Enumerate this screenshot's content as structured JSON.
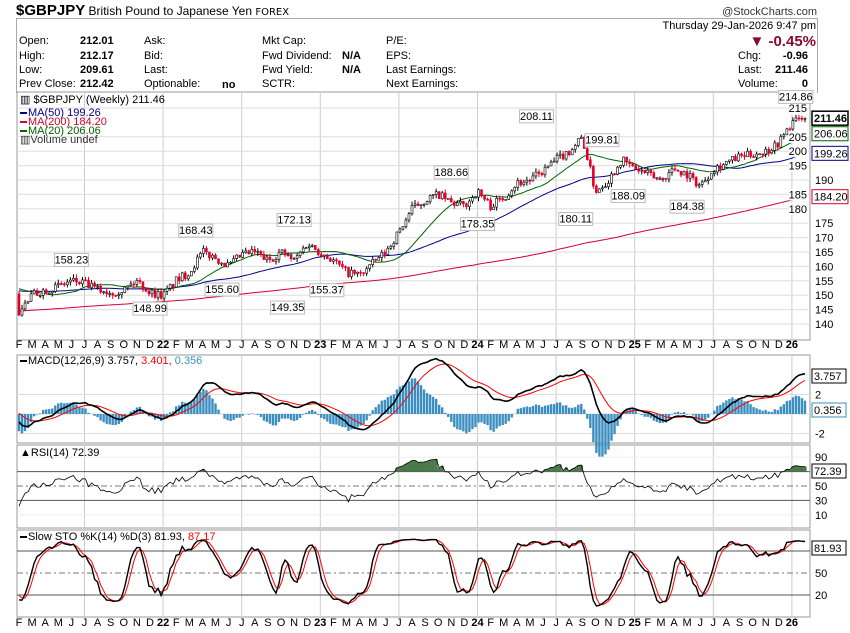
{
  "header": {
    "symbol": "$GBPJPY",
    "name": "British Pound to Japanese Yen",
    "exchange": "FOREX",
    "copyright": "@StockCharts.com",
    "datetime": "Thursday  29-Jan-2026  9:47 pm",
    "pct_change": "-0.45%",
    "down_arrow": "▼",
    "open_label": "Open:",
    "open": "212.01",
    "high_label": "High:",
    "high": "212.17",
    "low_label": "Low:",
    "low": "209.61",
    "prev_label": "Prev Close:",
    "prev": "212.42",
    "ask_label": "Ask:",
    "bid_label": "Bid:",
    "last_label": "Last:",
    "optionable_label": "Optionable:",
    "optionable": "no",
    "mktcap_label": "Mkt Cap:",
    "fwd_div_label": "Fwd Dividend:",
    "fwd_div": "N/A",
    "fwd_yield_label": "Fwd Yield:",
    "fwd_yield": "N/A",
    "sctr_label": "SCTR:",
    "pe_label": "P/E:",
    "eps_label": "EPS:",
    "last_earn_label": "Last Earnings:",
    "next_earn_label": "Next Earnings:",
    "chg_label": "Chg:",
    "chg": "-0.96",
    "last2_label": "Last:",
    "last": "211.46",
    "volume_label": "Volume:",
    "volume": "0"
  },
  "colors": {
    "up": "#000000",
    "down": "#e0002a",
    "ma50": "#00008b",
    "ma200": "#d40030",
    "ma20": "#006400",
    "macd": "#000000",
    "signal": "#ff0000",
    "hist": "#3b8fc0",
    "rsi_fill": "#4a7a4a"
  },
  "chart_data": {
    "type": "candlestick",
    "title": "$GBPJPY (Weekly) 211.46",
    "legend": {
      "ma50": "MA(50) 199.26",
      "ma200": "MA(200) 184.20",
      "ma20": "MA(20) 206.06",
      "volume": "Volume undef"
    },
    "ylim": [
      136,
      218
    ],
    "price_ticks": [
      140,
      145,
      150,
      155,
      160,
      165,
      170,
      175,
      180,
      185,
      190,
      195,
      200,
      205,
      215
    ],
    "last_labels": {
      "close": "211.46",
      "ma20": "206.06",
      "ma50": "199.26",
      "ma200": "184.20"
    },
    "last_values": {
      "close": 211.46,
      "ma20": 206.06,
      "ma50": 199.26,
      "ma200": 184.2
    },
    "start": "Feb 2021",
    "end": "Jan 2026",
    "close_anchors_by_month": [
      [
        0,
        144
      ],
      [
        1,
        150
      ],
      [
        2,
        152
      ],
      [
        3,
        153
      ],
      [
        4,
        155
      ],
      [
        5,
        154
      ],
      [
        6,
        152
      ],
      [
        7,
        151
      ],
      [
        8,
        152
      ],
      [
        9,
        155
      ],
      [
        10,
        151
      ],
      [
        11,
        150
      ],
      [
        12,
        155
      ],
      [
        13,
        158
      ],
      [
        14,
        165
      ],
      [
        15,
        163
      ],
      [
        16,
        160
      ],
      [
        17,
        164
      ],
      [
        18,
        165
      ],
      [
        19,
        162
      ],
      [
        20,
        165
      ],
      [
        21,
        162
      ],
      [
        22,
        168
      ],
      [
        23,
        165
      ],
      [
        24,
        162
      ],
      [
        25,
        158
      ],
      [
        26,
        157
      ],
      [
        27,
        161
      ],
      [
        28,
        165
      ],
      [
        29,
        172
      ],
      [
        30,
        180
      ],
      [
        31,
        183
      ],
      [
        32,
        185
      ],
      [
        33,
        182
      ],
      [
        34,
        181
      ],
      [
        35,
        186
      ],
      [
        36,
        181
      ],
      [
        37,
        184
      ],
      [
        38,
        189
      ],
      [
        39,
        190
      ],
      [
        40,
        193
      ],
      [
        41,
        197
      ],
      [
        42,
        200
      ],
      [
        43,
        205
      ],
      [
        44,
        186
      ],
      [
        45,
        190
      ],
      [
        46,
        197
      ],
      [
        47,
        194
      ],
      [
        48,
        192
      ],
      [
        49,
        190
      ],
      [
        50,
        194
      ],
      [
        51,
        192
      ],
      [
        52,
        188
      ],
      [
        53,
        194
      ],
      [
        54,
        196
      ],
      [
        55,
        198
      ],
      [
        56,
        199
      ],
      [
        57,
        200
      ],
      [
        58,
        203
      ],
      [
        59,
        210
      ],
      [
        59.9,
        211.46
      ]
    ],
    "annotations": [
      {
        "m": 4,
        "v": 158.23,
        "t": "158.23",
        "pos": "above"
      },
      {
        "m": 10,
        "v": 148.99,
        "t": "148.99",
        "pos": "below"
      },
      {
        "m": 13.5,
        "v": 168.43,
        "t": "168.43",
        "pos": "above"
      },
      {
        "m": 15.5,
        "v": 155.6,
        "t": "155.60",
        "pos": "below"
      },
      {
        "m": 20.5,
        "v": 149.35,
        "t": "149.35",
        "pos": "below"
      },
      {
        "m": 21,
        "v": 172.13,
        "t": "172.13",
        "pos": "above"
      },
      {
        "m": 23.5,
        "v": 155.37,
        "t": "155.37",
        "pos": "below"
      },
      {
        "m": 33,
        "v": 188.66,
        "t": "188.66",
        "pos": "above"
      },
      {
        "m": 35,
        "v": 178.35,
        "t": "178.35",
        "pos": "below"
      },
      {
        "m": 39.5,
        "v": 208.11,
        "t": "208.11",
        "pos": "above"
      },
      {
        "m": 42.5,
        "v": 180.11,
        "t": "180.11",
        "pos": "below"
      },
      {
        "m": 44.5,
        "v": 199.81,
        "t": "199.81",
        "pos": "above"
      },
      {
        "m": 46.5,
        "v": 188.09,
        "t": "188.09",
        "pos": "below"
      },
      {
        "m": 51,
        "v": 184.38,
        "t": "184.38",
        "pos": "below"
      },
      {
        "m": 59.3,
        "v": 214.86,
        "t": "214.86",
        "pos": "above"
      }
    ],
    "months": [
      "F",
      "M",
      "A",
      "M",
      "J",
      "J",
      "A",
      "S",
      "O",
      "N",
      "D",
      "22",
      "F",
      "M",
      "A",
      "M",
      "J",
      "J",
      "A",
      "S",
      "O",
      "N",
      "D",
      "23",
      "F",
      "M",
      "A",
      "M",
      "J",
      "J",
      "A",
      "S",
      "O",
      "N",
      "D",
      "24",
      "F",
      "M",
      "A",
      "M",
      "J",
      "J",
      "A",
      "S",
      "O",
      "N",
      "D",
      "25",
      "F",
      "M",
      "A",
      "M",
      "J",
      "J",
      "A",
      "S",
      "O",
      "N",
      "D",
      "26"
    ],
    "macd": {
      "label": "MACD(12,26,9) 3.757,",
      "signal_text": "3.401,",
      "hist_text": "0.356",
      "ticks": [
        2,
        -2
      ],
      "tick_labels": [
        "2",
        "-2"
      ],
      "last": "3.757",
      "last_hist": "0.356",
      "ylim": [
        -3,
        6
      ]
    },
    "rsi": {
      "label": "RSI(14) 72.39",
      "ticks": [
        90,
        50,
        30,
        10
      ],
      "tick_labels": [
        "90",
        "50",
        "30",
        "10"
      ],
      "last": "72.39"
    },
    "sto": {
      "label": "Slow STO %K(14) %D(3) 81.93,",
      "d_text": "87.17",
      "ticks": [
        50,
        20
      ],
      "tick_labels": [
        "50",
        "20"
      ],
      "last": "81.93"
    }
  }
}
